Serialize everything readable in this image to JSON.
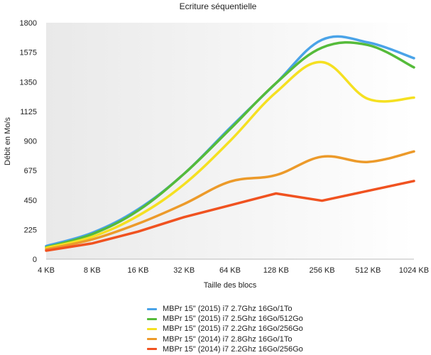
{
  "chart_data": {
    "type": "line",
    "title": "Ecriture séquentielle",
    "xlabel": "Taille des blocs",
    "ylabel": "Débit en Mo/s",
    "categories": [
      "4 KB",
      "8 KB",
      "16 KB",
      "32 KB",
      "64 KB",
      "128 KB",
      "256 KB",
      "512 KB",
      "1024 KB"
    ],
    "ylim": [
      0,
      1800
    ],
    "yticks": [
      0,
      225,
      450,
      675,
      900,
      1125,
      1350,
      1575,
      1800
    ],
    "grid": false,
    "legend_position": "bottom",
    "series": [
      {
        "name": "MBPr 15\" (2015) i7 2.7Ghz 16Go/1To",
        "color": "#4aa3e8",
        "values": [
          100,
          200,
          380,
          650,
          1000,
          1340,
          1670,
          1650,
          1530
        ]
      },
      {
        "name": "MBPr 15\" (2015) i7 2.5Ghz 16Go/512Go",
        "color": "#55bb3a",
        "values": [
          90,
          190,
          370,
          650,
          990,
          1340,
          1610,
          1630,
          1460
        ]
      },
      {
        "name": "MBPr 15\" (2015) i7 2.2Ghz 16Go/256Go",
        "color": "#f5e021",
        "values": [
          85,
          170,
          330,
          570,
          900,
          1270,
          1500,
          1220,
          1230
        ]
      },
      {
        "name": "MBPr 15\" (2014) i7 2.8Ghz 16Go/1To",
        "color": "#ec9a2a",
        "values": [
          75,
          150,
          270,
          420,
          590,
          640,
          780,
          740,
          820
        ]
      },
      {
        "name": "MBPr 15\" (2014) i7 2.2Ghz 16Go/256Go",
        "color": "#f05220",
        "values": [
          65,
          120,
          210,
          320,
          410,
          500,
          445,
          520,
          595
        ]
      }
    ]
  }
}
